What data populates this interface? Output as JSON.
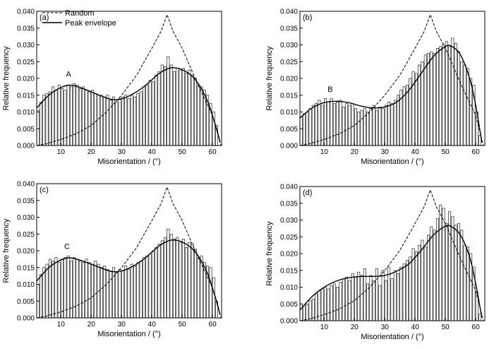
{
  "legend": {
    "random_label": "Random",
    "envelope_label": "Peak envelope"
  },
  "colors": {
    "ink": "#000000",
    "bar_fill": "#ffffff"
  },
  "chart_data": [
    {
      "type": "bar",
      "panel": "(a)",
      "xlabel": "Misorientation / (°)",
      "ylabel": "Relative frequency",
      "xlim": [
        2,
        63
      ],
      "ylim": [
        0,
        0.04
      ],
      "xticks": [
        10,
        20,
        30,
        40,
        50,
        60
      ],
      "yticks": [
        0.0,
        0.005,
        0.01,
        0.015,
        0.02,
        0.025,
        0.03,
        0.035,
        0.04
      ],
      "annotation": {
        "text": "A",
        "x": 12.5,
        "y": 0.0205
      },
      "bin_width": 1,
      "bins_start": 2,
      "values": [
        0.0105,
        0.013,
        0.015,
        0.0155,
        0.016,
        0.0175,
        0.0165,
        0.018,
        0.017,
        0.0165,
        0.018,
        0.0175,
        0.0185,
        0.018,
        0.017,
        0.0175,
        0.0165,
        0.016,
        0.0165,
        0.0155,
        0.015,
        0.015,
        0.0145,
        0.015,
        0.0135,
        0.0145,
        0.013,
        0.014,
        0.0145,
        0.015,
        0.014,
        0.015,
        0.0145,
        0.0155,
        0.016,
        0.0175,
        0.018,
        0.0195,
        0.019,
        0.021,
        0.022,
        0.024,
        0.0235,
        0.0265,
        0.024,
        0.022,
        0.023,
        0.0225,
        0.023,
        0.0215,
        0.0225,
        0.021,
        0.02,
        0.018,
        0.0175,
        0.0165,
        0.015,
        0.0125,
        0.01,
        0.006
      ],
      "envelope": {
        "x": [
          2,
          6,
          10,
          13,
          16,
          20,
          24,
          27,
          30,
          34,
          38,
          42,
          45,
          47,
          50,
          54,
          58,
          61,
          62.5
        ],
        "y": [
          0.0112,
          0.015,
          0.0173,
          0.018,
          0.0174,
          0.016,
          0.0145,
          0.0137,
          0.0139,
          0.0155,
          0.018,
          0.0212,
          0.0228,
          0.0232,
          0.0226,
          0.02,
          0.014,
          0.006,
          0.001
        ]
      },
      "random": {
        "x": [
          2,
          5,
          10,
          15,
          20,
          25,
          30,
          35,
          40,
          43,
          45,
          47,
          50,
          55,
          60,
          62.8
        ],
        "y": [
          0.0,
          0.0005,
          0.0018,
          0.0035,
          0.006,
          0.01,
          0.015,
          0.021,
          0.029,
          0.034,
          0.039,
          0.034,
          0.029,
          0.0185,
          0.009,
          0.0
        ]
      }
    },
    {
      "type": "bar",
      "panel": "(b)",
      "xlabel": "Misorientation / (°)",
      "ylabel": "Relative frequency",
      "xlim": [
        2,
        63
      ],
      "ylim": [
        0,
        0.04
      ],
      "xticks": [
        10,
        20,
        30,
        40,
        50,
        60
      ],
      "yticks": [
        0.0,
        0.005,
        0.01,
        0.015,
        0.02,
        0.025,
        0.03,
        0.035,
        0.04
      ],
      "annotation": {
        "text": "B",
        "x": 12,
        "y": 0.016
      },
      "bin_width": 1,
      "bins_start": 2,
      "values": [
        0.0085,
        0.0095,
        0.01,
        0.011,
        0.012,
        0.0125,
        0.0135,
        0.012,
        0.014,
        0.013,
        0.014,
        0.0125,
        0.013,
        0.0135,
        0.0115,
        0.0125,
        0.012,
        0.0125,
        0.011,
        0.01,
        0.0105,
        0.011,
        0.01,
        0.011,
        0.012,
        0.0105,
        0.0115,
        0.011,
        0.012,
        0.013,
        0.0125,
        0.0135,
        0.015,
        0.0165,
        0.0175,
        0.018,
        0.02,
        0.022,
        0.0215,
        0.024,
        0.025,
        0.027,
        0.0275,
        0.028,
        0.0275,
        0.029,
        0.0295,
        0.03,
        0.031,
        0.0295,
        0.032,
        0.0305,
        0.028,
        0.025,
        0.024,
        0.023,
        0.02,
        0.018,
        0.01,
        0.003
      ],
      "envelope": {
        "x": [
          2,
          6,
          10,
          14,
          18,
          22,
          26,
          30,
          34,
          38,
          42,
          46,
          50,
          52,
          55,
          58,
          60,
          62
        ],
        "y": [
          0.0082,
          0.0112,
          0.0128,
          0.0132,
          0.0128,
          0.0118,
          0.0112,
          0.0115,
          0.013,
          0.0165,
          0.0215,
          0.0265,
          0.0295,
          0.0296,
          0.027,
          0.02,
          0.012,
          0.001
        ]
      },
      "random": {
        "x": [
          2,
          5,
          10,
          15,
          20,
          25,
          30,
          35,
          40,
          43,
          45,
          47,
          50,
          55,
          60,
          62.5
        ],
        "y": [
          0.0,
          0.0005,
          0.0018,
          0.0035,
          0.006,
          0.01,
          0.015,
          0.021,
          0.029,
          0.034,
          0.039,
          0.034,
          0.029,
          0.0185,
          0.009,
          0.0
        ]
      }
    },
    {
      "type": "bar",
      "panel": "(c)",
      "xlabel": "Misorientation / (°)",
      "ylabel": "Relative frequency",
      "xlim": [
        2,
        63
      ],
      "ylim": [
        0,
        0.04
      ],
      "xticks": [
        10,
        20,
        30,
        40,
        50,
        60
      ],
      "yticks": [
        0.0,
        0.005,
        0.01,
        0.015,
        0.02,
        0.025,
        0.03,
        0.035,
        0.04
      ],
      "annotation": {
        "text": "C",
        "x": 12,
        "y": 0.0205
      },
      "bin_width": 1,
      "bins_start": 2,
      "values": [
        0.01,
        0.013,
        0.015,
        0.016,
        0.0175,
        0.017,
        0.018,
        0.0165,
        0.0175,
        0.018,
        0.0185,
        0.017,
        0.018,
        0.0175,
        0.017,
        0.0165,
        0.0175,
        0.0165,
        0.016,
        0.017,
        0.016,
        0.015,
        0.0155,
        0.0145,
        0.014,
        0.015,
        0.0135,
        0.0145,
        0.014,
        0.0155,
        0.0145,
        0.016,
        0.0155,
        0.0165,
        0.017,
        0.018,
        0.0185,
        0.019,
        0.02,
        0.021,
        0.022,
        0.023,
        0.024,
        0.0265,
        0.025,
        0.0235,
        0.024,
        0.0225,
        0.0235,
        0.021,
        0.0225,
        0.022,
        0.0205,
        0.018,
        0.0185,
        0.0165,
        0.0155,
        0.015,
        0.012,
        0.005
      ],
      "envelope": {
        "x": [
          2,
          6,
          10,
          13,
          16,
          20,
          24,
          27,
          30,
          34,
          38,
          42,
          45,
          47,
          50,
          54,
          58,
          61,
          62.5
        ],
        "y": [
          0.011,
          0.015,
          0.0173,
          0.0179,
          0.0173,
          0.016,
          0.0146,
          0.0138,
          0.014,
          0.0155,
          0.018,
          0.0212,
          0.0228,
          0.0232,
          0.0226,
          0.02,
          0.014,
          0.006,
          0.001
        ]
      },
      "random": {
        "x": [
          2,
          5,
          10,
          15,
          20,
          25,
          30,
          35,
          40,
          43,
          45,
          47,
          50,
          55,
          60,
          62.8
        ],
        "y": [
          0.0,
          0.0005,
          0.0018,
          0.0035,
          0.006,
          0.01,
          0.015,
          0.021,
          0.029,
          0.034,
          0.039,
          0.034,
          0.029,
          0.0185,
          0.009,
          0.0
        ]
      }
    },
    {
      "type": "bar",
      "panel": "(d)",
      "xlabel": "Misorientation / (°)",
      "ylabel": "Relative frequency",
      "xlim": [
        2,
        63
      ],
      "ylim": [
        0,
        0.04
      ],
      "xticks": [
        10,
        20,
        30,
        40,
        50,
        60
      ],
      "yticks": [
        0.0,
        0.005,
        0.01,
        0.015,
        0.02,
        0.025,
        0.03,
        0.035,
        0.04
      ],
      "bin_width": 1,
      "bins_start": 2,
      "values": [
        0.005,
        0.0045,
        0.005,
        0.006,
        0.0065,
        0.008,
        0.009,
        0.0095,
        0.01,
        0.0095,
        0.0105,
        0.011,
        0.01,
        0.0115,
        0.0125,
        0.013,
        0.012,
        0.014,
        0.013,
        0.0145,
        0.0135,
        0.0155,
        0.011,
        0.0135,
        0.012,
        0.0155,
        0.0105,
        0.015,
        0.012,
        0.016,
        0.0125,
        0.015,
        0.014,
        0.016,
        0.017,
        0.018,
        0.019,
        0.0215,
        0.0205,
        0.0225,
        0.024,
        0.022,
        0.0255,
        0.028,
        0.027,
        0.0305,
        0.0345,
        0.0335,
        0.029,
        0.0325,
        0.031,
        0.0285,
        0.029,
        0.027,
        0.0225,
        0.022,
        0.02,
        0.016,
        0.0085,
        0.002
      ],
      "envelope": {
        "x": [
          2,
          6,
          10,
          14,
          18,
          22,
          26,
          30,
          34,
          38,
          42,
          46,
          50,
          52,
          55,
          58,
          60,
          62
        ],
        "y": [
          0.0032,
          0.0072,
          0.01,
          0.0118,
          0.0128,
          0.0132,
          0.0132,
          0.0135,
          0.0148,
          0.017,
          0.021,
          0.0255,
          0.0282,
          0.028,
          0.0255,
          0.019,
          0.011,
          0.001
        ]
      },
      "random": {
        "x": [
          2,
          5,
          10,
          15,
          20,
          25,
          30,
          35,
          40,
          43,
          45,
          47,
          50,
          55,
          60,
          62.5
        ],
        "y": [
          0.0,
          0.0005,
          0.0018,
          0.0035,
          0.006,
          0.01,
          0.015,
          0.021,
          0.029,
          0.034,
          0.039,
          0.034,
          0.029,
          0.0185,
          0.009,
          0.0
        ]
      }
    }
  ]
}
